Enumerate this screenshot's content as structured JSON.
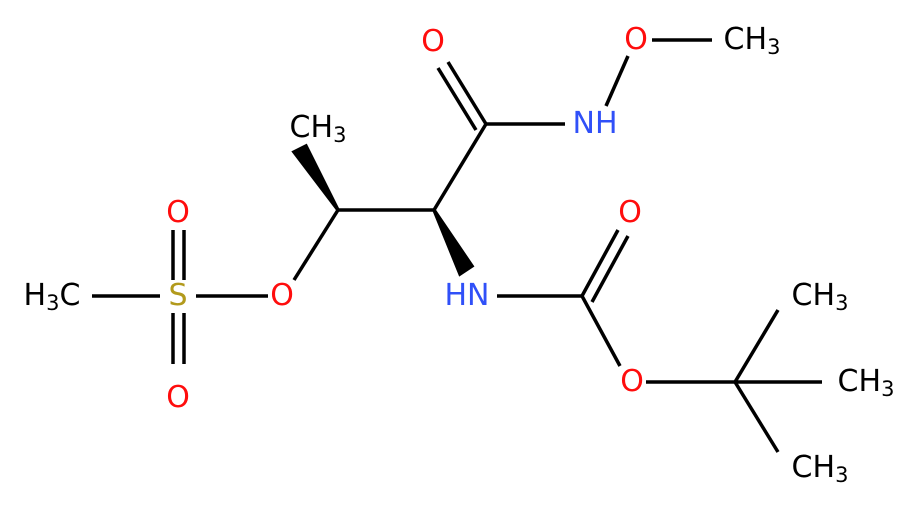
{
  "atoms": [
    {
      "label": "O"
    },
    {
      "label": "O"
    },
    {
      "label": "CH",
      "sub": "3"
    },
    {
      "label": "NH"
    },
    {
      "label": "CH",
      "sub": "3"
    },
    {
      "label": "O"
    },
    {
      "label": "O"
    },
    {
      "label": "H",
      "sub": "3",
      "tail": "C"
    },
    {
      "label": "S"
    },
    {
      "label": "O"
    },
    {
      "label": "HN"
    },
    {
      "label": "CH",
      "sub": "3"
    },
    {
      "label": "O"
    },
    {
      "label": "CH",
      "sub": "3"
    },
    {
      "label": "O"
    },
    {
      "label": "CH",
      "sub": "3"
    }
  ]
}
